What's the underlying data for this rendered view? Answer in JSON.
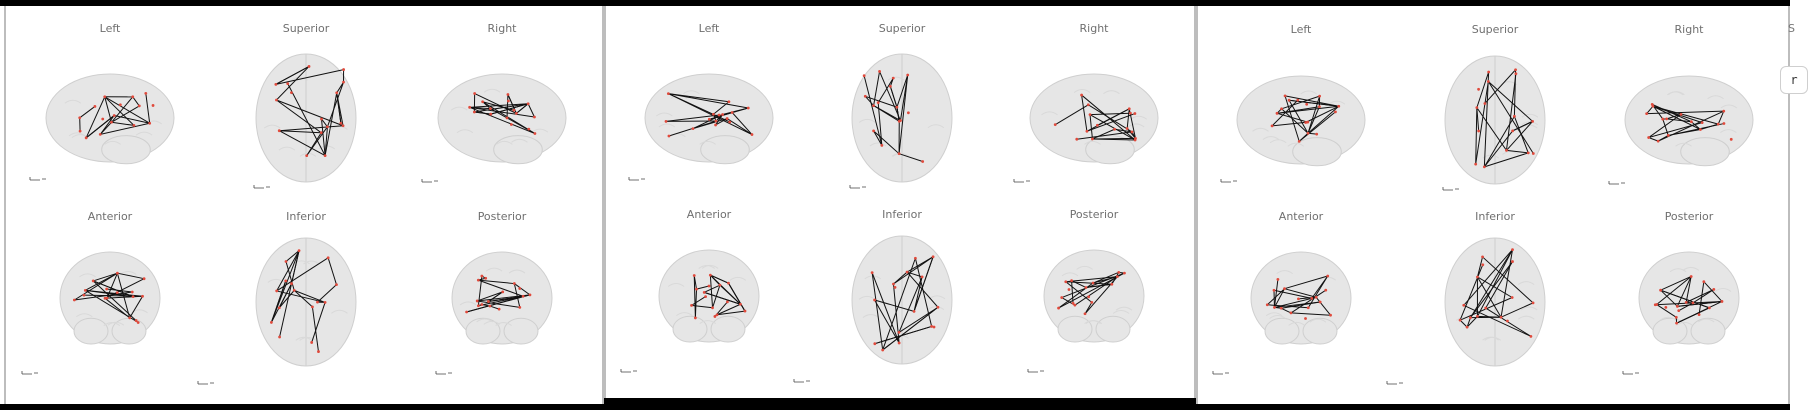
{
  "colors": {
    "edge": "#111111",
    "node": "#e04a3c",
    "brain": "#e6e6e6",
    "brain_stroke": "#cfcfcf"
  },
  "panels": [
    {
      "id": "panel-1",
      "titles": [
        "Left",
        "Superior",
        "Right",
        "Anterior",
        "Inferior",
        "Posterior"
      ]
    },
    {
      "id": "panel-2",
      "titles": [
        "Left",
        "Superior",
        "Right",
        "Anterior",
        "Inferior",
        "Posterior"
      ]
    },
    {
      "id": "panel-3",
      "titles": [
        "Left",
        "Superior",
        "Right",
        "Anterior",
        "Inferior",
        "Posterior"
      ]
    }
  ],
  "side_button": {
    "label": "r"
  },
  "side_char": "S",
  "icons": [
    "orientation-axes-icon"
  ]
}
